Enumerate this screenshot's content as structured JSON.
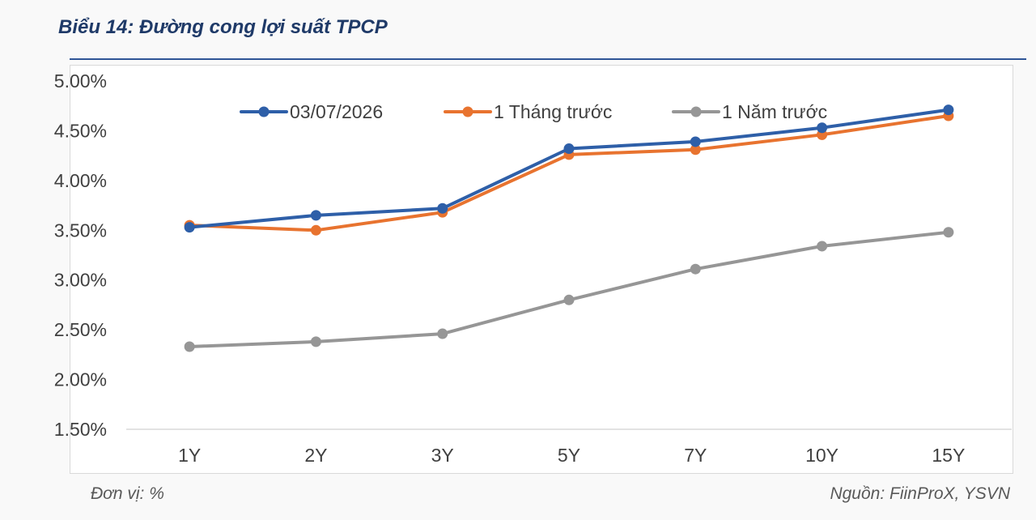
{
  "title": "Biểu 14: Đường cong lợi suất TPCP",
  "unit_note": "Đơn vị: %",
  "source_note": "Nguồn: FiinProX, YSVN",
  "chart_data": {
    "type": "line",
    "categories": [
      "1Y",
      "2Y",
      "3Y",
      "5Y",
      "7Y",
      "10Y",
      "15Y"
    ],
    "series": [
      {
        "name": "03/07/2026",
        "color": "#2e5fa8",
        "values": [
          3.53,
          3.65,
          3.72,
          4.32,
          4.39,
          4.53,
          4.71
        ]
      },
      {
        "name": "1 Tháng trước",
        "color": "#e8732f",
        "values": [
          3.55,
          3.5,
          3.68,
          4.26,
          4.31,
          4.46,
          4.65
        ]
      },
      {
        "name": "1 Năm trước",
        "color": "#969696",
        "values": [
          2.33,
          2.38,
          2.46,
          2.8,
          3.11,
          3.34,
          3.48
        ]
      }
    ],
    "ylim": [
      1.5,
      5.0
    ],
    "yticks": [
      "1.50%",
      "2.00%",
      "2.50%",
      "3.00%",
      "3.50%",
      "4.00%",
      "4.50%",
      "5.00%"
    ],
    "grid": false,
    "legend": "top"
  }
}
